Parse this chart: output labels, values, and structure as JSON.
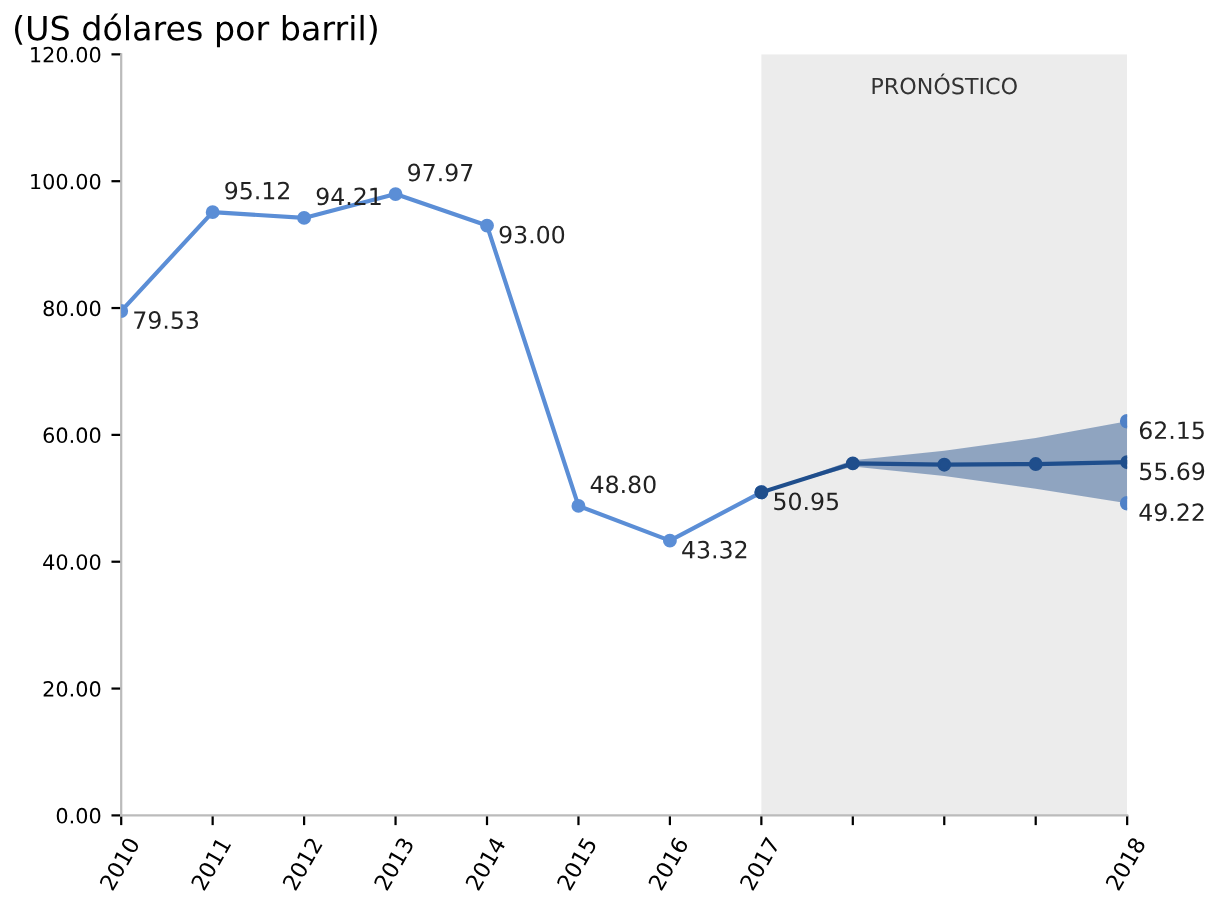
{
  "chart_data": {
    "type": "line",
    "title": "(US dólares por barril)",
    "categories": [
      "2010",
      "2011",
      "2012",
      "2013",
      "2014",
      "2015",
      "2016",
      "2017",
      null,
      null,
      null,
      "2018"
    ],
    "series": [
      {
        "color": "#5b8ed6",
        "values": [
          79.53,
          95.12,
          94.21,
          97.97,
          93.0,
          48.8,
          43.32,
          50.95,
          null,
          null,
          null,
          null
        ],
        "value_labels": [
          "79.53",
          "95.12",
          "94.21",
          "97.97",
          "93.00",
          "48.80",
          "43.32",
          "50.95",
          null,
          null,
          null,
          null
        ]
      },
      {
        "color": "#1f4e8c",
        "values": [
          null,
          null,
          null,
          null,
          null,
          null,
          null,
          50.95,
          55.5,
          55.3,
          55.4,
          55.69
        ],
        "lower": [
          null,
          null,
          null,
          null,
          null,
          null,
          null,
          50.95,
          55.0,
          53.5,
          51.5,
          49.22
        ],
        "upper": [
          null,
          null,
          null,
          null,
          null,
          null,
          null,
          50.95,
          56.0,
          57.5,
          59.5,
          62.15
        ],
        "value_labels": [
          null,
          null,
          null,
          null,
          null,
          null,
          null,
          null,
          null,
          null,
          null,
          "55.69"
        ]
      },
      {
        "type": "scatter",
        "color": "#4f81c7",
        "values": [
          null,
          null,
          null,
          null,
          null,
          null,
          null,
          null,
          null,
          null,
          null,
          62.15
        ],
        "value_labels": [
          null,
          null,
          null,
          null,
          null,
          null,
          null,
          null,
          null,
          null,
          null,
          "62.15"
        ]
      },
      {
        "type": "scatter",
        "color": "#4f81c7",
        "values": [
          null,
          null,
          null,
          null,
          null,
          null,
          null,
          null,
          null,
          null,
          null,
          49.22
        ],
        "value_labels": [
          null,
          null,
          null,
          null,
          null,
          null,
          null,
          null,
          null,
          null,
          null,
          "49.22"
        ]
      }
    ],
    "bands": [
      {
        "axis": "x",
        "from": "2017",
        "to": "2018",
        "label": "PRONÓSTICO",
        "color": "#ececec"
      }
    ],
    "ylim": [
      0,
      120
    ],
    "yticks": [
      {
        "value": 0,
        "label": "0.00"
      },
      {
        "value": 20,
        "label": "20.00"
      },
      {
        "value": 40,
        "label": "40.00"
      },
      {
        "value": 60,
        "label": "60.00"
      },
      {
        "value": 80,
        "label": "80.00"
      },
      {
        "value": 100,
        "label": "100.00"
      },
      {
        "value": 120,
        "label": "120.00"
      }
    ],
    "marker": "circle",
    "grid": false,
    "legend": false
  }
}
